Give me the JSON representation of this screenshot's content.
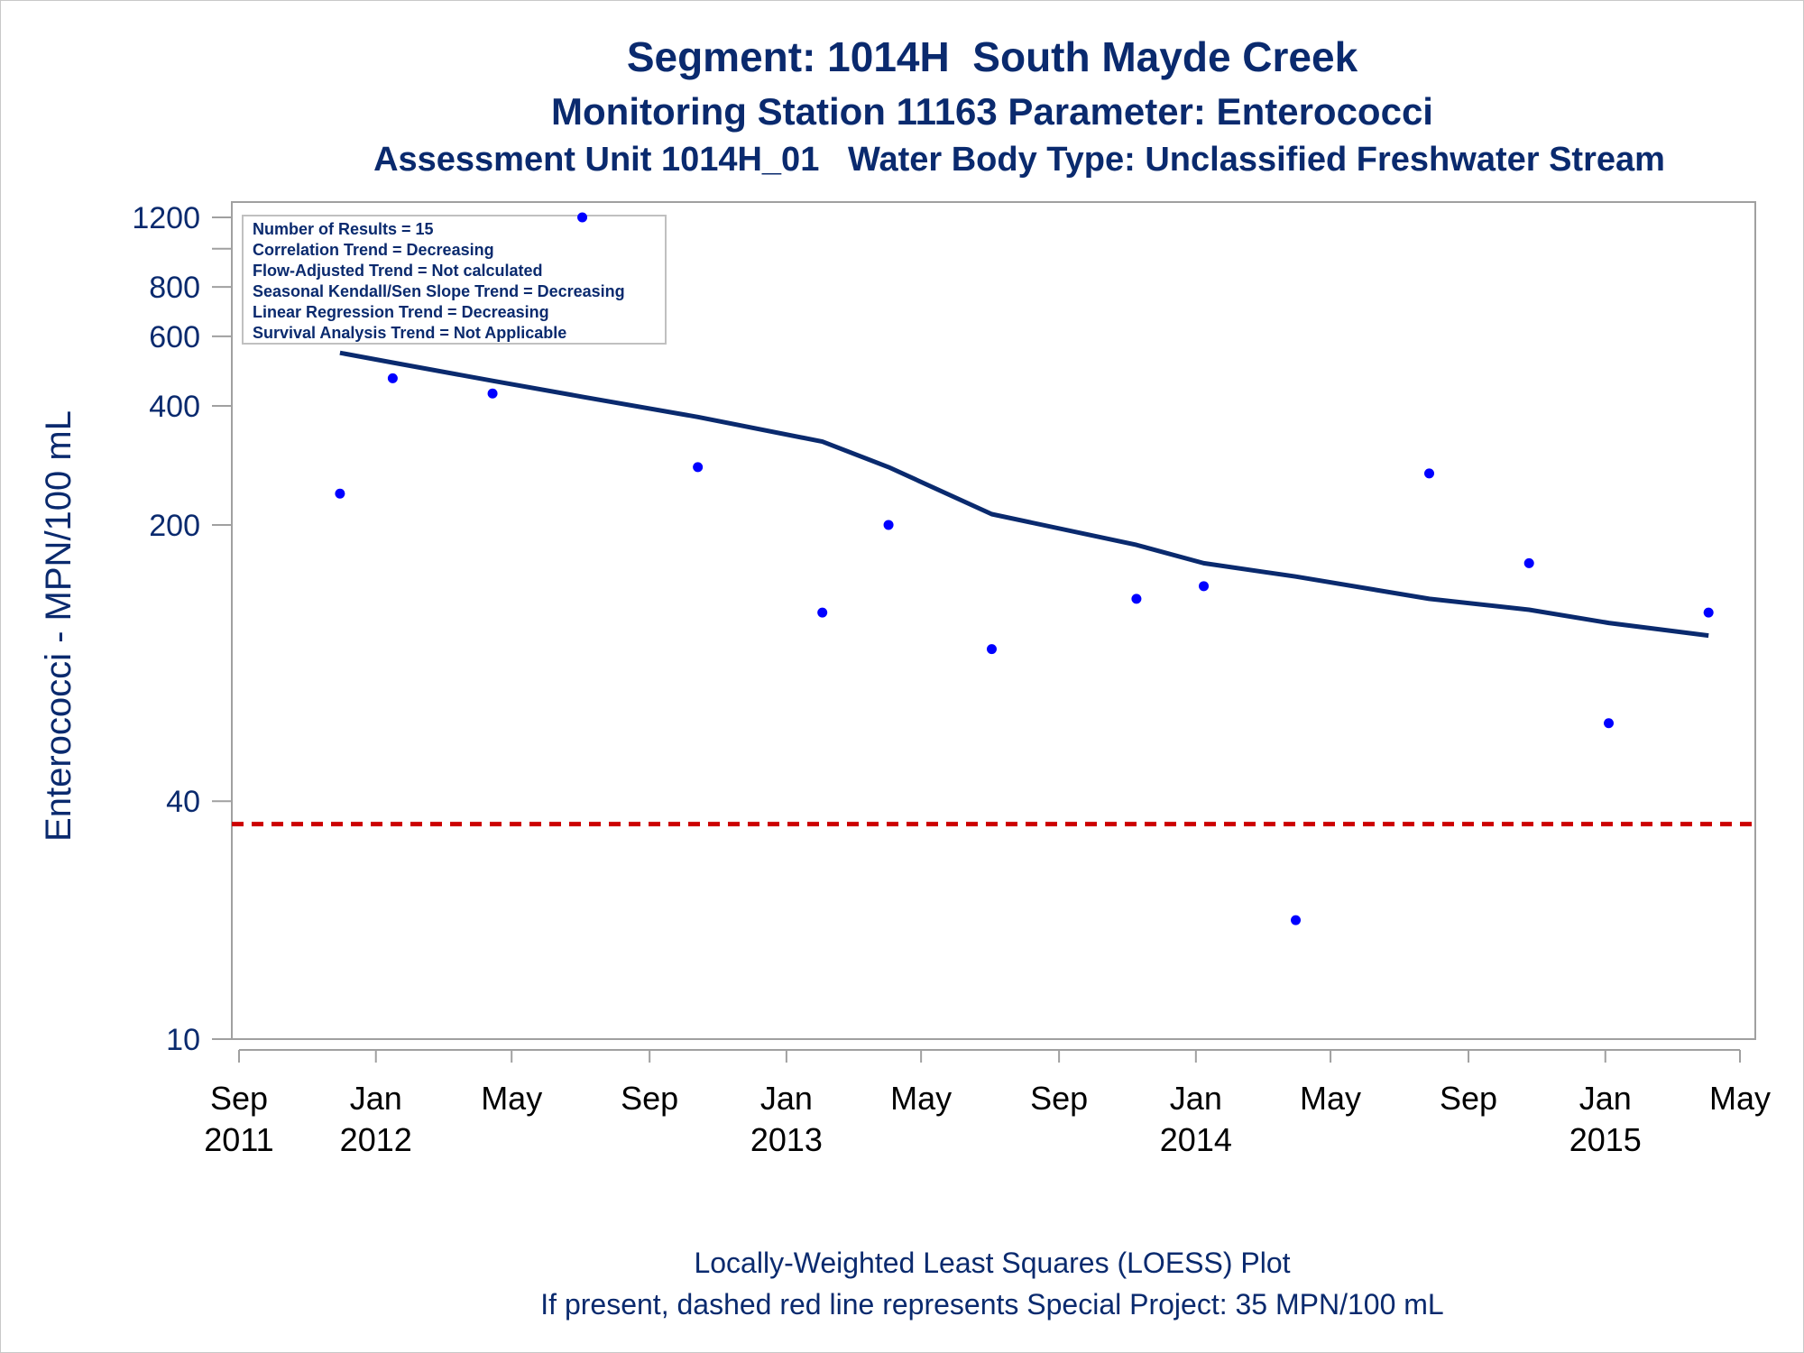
{
  "titles": {
    "line1": "Segment: 1014H  South Mayde Creek",
    "line2": "Monitoring Station 11163 Parameter: Enterococci",
    "line3": "Assessment Unit 1014H_01   Water Body Type: Unclassified Freshwater Stream"
  },
  "footer": {
    "line1": "Locally-Weighted Least Squares (LOESS) Plot",
    "line2": "If present, dashed red line represents Special Project: 35 MPN/100 mL"
  },
  "legend_box": [
    "Number of Results = 15",
    "Correlation Trend = Decreasing",
    "Flow-Adjusted Trend = Not calculated",
    "Seasonal Kendall/Sen Slope Trend = Decreasing",
    "Linear Regression Trend = Decreasing",
    "Survival Analysis Trend = Not Applicable"
  ],
  "chart_data": {
    "type": "scatter",
    "y_scale": "log",
    "ylabel": "Enterococci - MPN/100 mL",
    "xlabel": "",
    "xlim": [
      "2011-09-01",
      "2015-05-01"
    ],
    "ylim": [
      10,
      1200
    ],
    "y_ticks_labeled": [
      10,
      40,
      200,
      400,
      600,
      800,
      1200
    ],
    "y_ticks_unlabeled": [
      1000
    ],
    "x_ticks": [
      {
        "date": "2011-09-01",
        "label1": "Sep",
        "label2": "2011"
      },
      {
        "date": "2012-01-01",
        "label1": "Jan",
        "label2": "2012"
      },
      {
        "date": "2012-05-01",
        "label1": "May",
        "label2": ""
      },
      {
        "date": "2012-09-01",
        "label1": "Sep",
        "label2": ""
      },
      {
        "date": "2013-01-01",
        "label1": "Jan",
        "label2": "2013"
      },
      {
        "date": "2013-05-01",
        "label1": "May",
        "label2": ""
      },
      {
        "date": "2013-09-01",
        "label1": "Sep",
        "label2": ""
      },
      {
        "date": "2014-01-01",
        "label1": "Jan",
        "label2": "2014"
      },
      {
        "date": "2014-05-01",
        "label1": "May",
        "label2": ""
      },
      {
        "date": "2014-09-01",
        "label1": "Sep",
        "label2": ""
      },
      {
        "date": "2015-01-01",
        "label1": "Jan",
        "label2": "2015"
      },
      {
        "date": "2015-05-01",
        "label1": "May",
        "label2": ""
      }
    ],
    "points": [
      {
        "date": "2011-11-30",
        "value": 240
      },
      {
        "date": "2012-01-16",
        "value": 470
      },
      {
        "date": "2012-04-14",
        "value": 430
      },
      {
        "date": "2012-07-03",
        "value": 1200
      },
      {
        "date": "2012-10-14",
        "value": 280
      },
      {
        "date": "2013-02-02",
        "value": 120
      },
      {
        "date": "2013-04-02",
        "value": 200
      },
      {
        "date": "2013-07-03",
        "value": 97
      },
      {
        "date": "2013-11-09",
        "value": 130
      },
      {
        "date": "2014-01-08",
        "value": 140
      },
      {
        "date": "2014-03-31",
        "value": 20
      },
      {
        "date": "2014-07-28",
        "value": 270
      },
      {
        "date": "2014-10-25",
        "value": 160
      },
      {
        "date": "2015-01-04",
        "value": 63
      },
      {
        "date": "2015-04-03",
        "value": 120
      }
    ],
    "loess": [
      {
        "date": "2011-11-30",
        "value": 545
      },
      {
        "date": "2012-01-16",
        "value": 515
      },
      {
        "date": "2012-04-14",
        "value": 463
      },
      {
        "date": "2012-07-03",
        "value": 422
      },
      {
        "date": "2012-10-14",
        "value": 375
      },
      {
        "date": "2013-02-02",
        "value": 325
      },
      {
        "date": "2013-04-02",
        "value": 280
      },
      {
        "date": "2013-07-03",
        "value": 213
      },
      {
        "date": "2013-11-09",
        "value": 178
      },
      {
        "date": "2014-01-08",
        "value": 160
      },
      {
        "date": "2014-03-31",
        "value": 148
      },
      {
        "date": "2014-07-28",
        "value": 130
      },
      {
        "date": "2014-10-25",
        "value": 122
      },
      {
        "date": "2015-01-04",
        "value": 113
      },
      {
        "date": "2015-04-03",
        "value": 105
      }
    ],
    "reference_line": {
      "value": 35,
      "style": "dashed"
    },
    "colors": {
      "points": "#0000ff",
      "loess": "#0a2a6e",
      "reference": "#cc0000",
      "axis_text": "#0a2a6e",
      "frame": "#a0a0a0"
    },
    "grid": false
  }
}
